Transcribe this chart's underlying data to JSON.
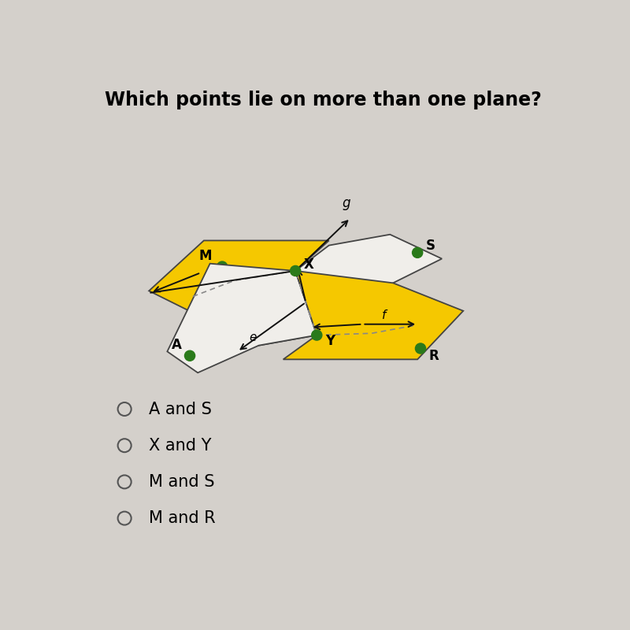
{
  "title": "Which points lie on more than one plane?",
  "title_fontsize": 17,
  "title_fontweight": "bold",
  "background_color": "#d4d0cb",
  "choices": [
    "A and S",
    "X and Y",
    "M and S",
    "M and R"
  ],
  "choice_fontsize": 15,
  "yellow_color": "#F5C800",
  "white_plane_color": "#f0eeea",
  "plane_edge_color": "#444444",
  "point_color": "#2a7a1a",
  "line_color": "#111111",
  "arrow_color": "#111111",
  "dashed_color": "#888888"
}
